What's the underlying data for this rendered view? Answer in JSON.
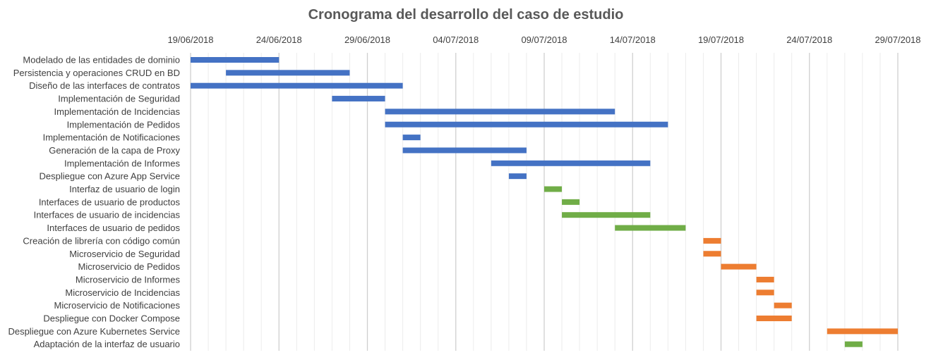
{
  "chart_data": {
    "type": "bar",
    "orientation": "horizontal",
    "title": "Cronograma del desarrollo del caso de estudio",
    "x_axis": {
      "type": "date",
      "position": "top",
      "min": "2018-06-19",
      "max": "2018-07-29",
      "tick_labels": [
        "19/06/2018",
        "24/06/2018",
        "29/06/2018",
        "04/07/2018",
        "09/07/2018",
        "14/07/2018",
        "19/07/2018",
        "24/07/2018",
        "29/07/2018"
      ]
    },
    "grid": true,
    "legend": "none",
    "colors": {
      "blue": "#4472C4",
      "green": "#70AD47",
      "orange": "#ED7D31"
    },
    "tasks": [
      {
        "name": "Modelado de las entidades de dominio",
        "start": "2018-06-19",
        "end": "2018-06-24",
        "color": "blue"
      },
      {
        "name": "Persistencia y operaciones CRUD en BD",
        "start": "2018-06-21",
        "end": "2018-06-28",
        "color": "blue"
      },
      {
        "name": "Diseño de las interfaces de contratos",
        "start": "2018-06-19",
        "end": "2018-07-01",
        "color": "blue"
      },
      {
        "name": "Implementación de Seguridad",
        "start": "2018-06-27",
        "end": "2018-06-30",
        "color": "blue"
      },
      {
        "name": "Implementación de Incidencias",
        "start": "2018-06-30",
        "end": "2018-07-13",
        "color": "blue"
      },
      {
        "name": "Implementación de Pedidos",
        "start": "2018-06-30",
        "end": "2018-07-16",
        "color": "blue"
      },
      {
        "name": "Implementación de Notificaciones",
        "start": "2018-07-01",
        "end": "2018-07-02",
        "color": "blue"
      },
      {
        "name": "Generación de la capa de Proxy",
        "start": "2018-07-01",
        "end": "2018-07-08",
        "color": "blue"
      },
      {
        "name": "Implementación de Informes",
        "start": "2018-07-06",
        "end": "2018-07-15",
        "color": "blue"
      },
      {
        "name": "Despliegue con Azure App Service",
        "start": "2018-07-07",
        "end": "2018-07-08",
        "color": "blue"
      },
      {
        "name": "Interfaz de usuario de login",
        "start": "2018-07-09",
        "end": "2018-07-10",
        "color": "green"
      },
      {
        "name": "Interfaces de usuario de productos",
        "start": "2018-07-10",
        "end": "2018-07-11",
        "color": "green"
      },
      {
        "name": "Interfaces de usuario de incidencias",
        "start": "2018-07-10",
        "end": "2018-07-15",
        "color": "green"
      },
      {
        "name": "Interfaces de usuario de pedidos",
        "start": "2018-07-13",
        "end": "2018-07-17",
        "color": "green"
      },
      {
        "name": "Creación de librería con código común",
        "start": "2018-07-18",
        "end": "2018-07-19",
        "color": "orange"
      },
      {
        "name": "Microservicio de Seguridad",
        "start": "2018-07-18",
        "end": "2018-07-19",
        "color": "orange"
      },
      {
        "name": "Microservicio de Pedidos",
        "start": "2018-07-19",
        "end": "2018-07-21",
        "color": "orange"
      },
      {
        "name": "Microservicio de Informes",
        "start": "2018-07-21",
        "end": "2018-07-22",
        "color": "orange"
      },
      {
        "name": "Microservicio de Incidencias",
        "start": "2018-07-21",
        "end": "2018-07-22",
        "color": "orange"
      },
      {
        "name": "Microservicio de Notificaciones",
        "start": "2018-07-22",
        "end": "2018-07-23",
        "color": "orange"
      },
      {
        "name": "Despliegue con Docker Compose",
        "start": "2018-07-21",
        "end": "2018-07-23",
        "color": "orange"
      },
      {
        "name": "Despliegue con Azure Kubernetes Service",
        "start": "2018-07-25",
        "end": "2018-07-29",
        "color": "orange"
      },
      {
        "name": "Adaptación de la interfaz de usuario",
        "start": "2018-07-26",
        "end": "2018-07-27",
        "color": "green"
      }
    ]
  }
}
